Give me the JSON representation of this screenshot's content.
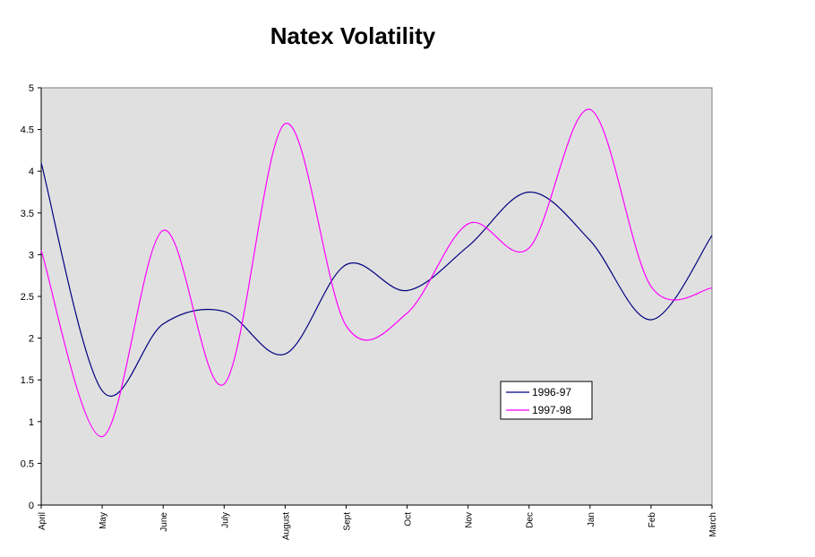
{
  "chart_data": {
    "type": "line",
    "title": "Natex Volatility",
    "xlabel": "",
    "ylabel": "",
    "ylim": [
      0,
      5
    ],
    "yticks": [
      "0",
      "0.5",
      "1",
      "1.5",
      "2",
      "2.5",
      "3",
      "3.5",
      "4",
      "4.5",
      "5"
    ],
    "categories": [
      "April",
      "May",
      "June",
      "July",
      "August",
      "Sept",
      "Oct",
      "Nov",
      "Dec",
      "Jan",
      "Feb",
      "March"
    ],
    "series": [
      {
        "name": "1996-97",
        "color": "#000080",
        "values": [
          4.1,
          1.37,
          2.17,
          2.32,
          1.81,
          2.88,
          2.57,
          3.1,
          3.75,
          3.17,
          2.22,
          3.23
        ]
      },
      {
        "name": "1997-98",
        "color": "#ff00ff",
        "values": [
          3.05,
          0.82,
          3.29,
          1.45,
          4.57,
          2.15,
          2.3,
          3.37,
          3.08,
          4.74,
          2.62,
          2.6
        ]
      }
    ],
    "grid": false,
    "legend": "lower-right",
    "plot_background": "#e0e0e0"
  }
}
